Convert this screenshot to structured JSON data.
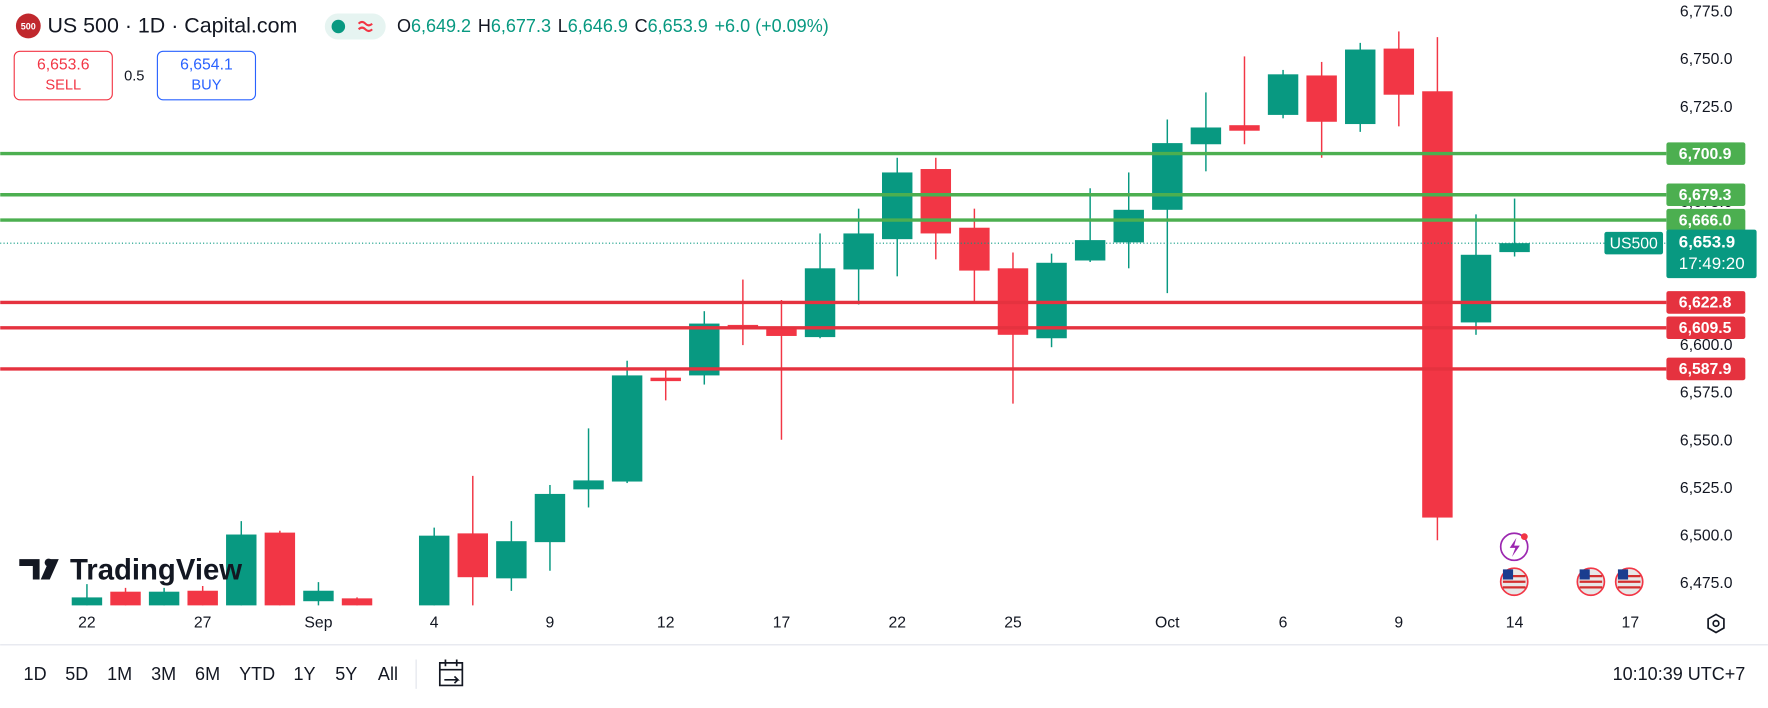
{
  "header": {
    "badge": "500",
    "symbol": "US 500 · 1D · Capital.com",
    "ohlc": [
      {
        "label": "O",
        "value": "6,649.2"
      },
      {
        "label": "H",
        "value": "6,677.3"
      },
      {
        "label": "L",
        "value": "6,646.9"
      },
      {
        "label": "C",
        "value": "6,653.9"
      }
    ],
    "change": "+6.0 (+0.09%)",
    "sell": {
      "price": "6,653.6",
      "label": "SELL"
    },
    "spread": "0.5",
    "buy": {
      "price": "6,654.1",
      "label": "BUY"
    }
  },
  "logo": "TradingView",
  "toolbar": {
    "ranges": [
      "1D",
      "5D",
      "1M",
      "3M",
      "6M",
      "YTD",
      "1Y",
      "5Y",
      "All"
    ],
    "clock": "10:10:39 UTC+7"
  },
  "chart_data": {
    "type": "candlestick",
    "categories": [
      "22",
      null,
      null,
      "27",
      null,
      null,
      "Sep",
      null,
      null,
      "4",
      null,
      null,
      "9",
      null,
      null,
      "12",
      null,
      null,
      "17",
      null,
      null,
      "22",
      null,
      null,
      "25",
      null,
      null,
      null,
      "Oct",
      null,
      null,
      "6",
      null,
      null,
      "9",
      null,
      null,
      "14",
      null,
      null,
      "17"
    ],
    "open": [
      6450,
      6471,
      6450,
      6471.5,
      6450,
      6502,
      6466,
      6467.5,
      null,
      6455,
      6501.6,
      6478,
      6497,
      6524.7,
      6528.8,
      6583.3,
      6584.5,
      6611,
      6609.3,
      6604.6,
      6640.1,
      6656,
      6692.8,
      6662,
      6640.7,
      6604,
      6644.8,
      6654.3,
      6671.4,
      6705.8,
      6715.8,
      6721.2,
      6741.9,
      6716.4,
      6756,
      6733.6,
      6612.3,
      6649.2,
      null,
      null,
      null
    ],
    "high": [
      6475,
      6473,
      6473,
      6474,
      6508,
      6503,
      6476,
      6468,
      null,
      6504.6,
      6531.8,
      6508,
      6527,
      6556.7,
      6592.2,
      6588,
      6618.2,
      6634.8,
      6624.1,
      6659,
      6672,
      6698.7,
      6698.7,
      6672,
      6649,
      6648.4,
      6682.7,
      6691,
      6718.8,
      6733,
      6751.9,
      6744.8,
      6749,
      6759,
      6765,
      6762,
      6669,
      6677.3,
      null,
      null,
      null
    ],
    "low": [
      6440,
      6440,
      6445,
      6450,
      6440,
      6440,
      6462,
      6440,
      null,
      6450,
      6462,
      6471.4,
      6482,
      6515.2,
      6528,
      6571.4,
      6579.7,
      6600.4,
      6550.7,
      6604,
      6621.7,
      6636.5,
      6645.4,
      6622.9,
      6569.7,
      6599.3,
      6644,
      6640.7,
      6627.7,
      6691.6,
      6705.8,
      6719.4,
      6698.7,
      6712.3,
      6715.2,
      6498,
      6605.8,
      6646.9,
      null,
      null,
      null
    ],
    "close": [
      6468,
      6450,
      6471,
      6458,
      6501,
      6450,
      6471.5,
      6450,
      null,
      6500.4,
      6478.6,
      6497.5,
      6522.3,
      6529.4,
      6584.5,
      6581.5,
      6611.7,
      6609.3,
      6605.2,
      6640.7,
      6659,
      6691,
      6659,
      6639.5,
      6605.8,
      6643.6,
      6655.5,
      6671.4,
      6706.4,
      6714.6,
      6712.9,
      6742.5,
      6717.6,
      6755.5,
      6731.8,
      6509.9,
      6647.8,
      6653.9,
      null,
      null,
      null
    ],
    "up_color": "#089981",
    "down_color": "#f23645",
    "ylim": [
      6463.8,
      6781.5
    ],
    "yticks": [
      {
        "value": 6475,
        "label": "6,475.0"
      },
      {
        "value": 6500,
        "label": "6,500.0"
      },
      {
        "value": 6525,
        "label": "6,525.0"
      },
      {
        "value": 6550,
        "label": "6,550.0"
      },
      {
        "value": 6575,
        "label": "6,575.0"
      },
      {
        "value": 6600,
        "label": "6,600.0"
      },
      {
        "value": 6625,
        "label": "6,625.0"
      },
      {
        "value": 6650,
        "label": "6,650.0"
      },
      {
        "value": 6675,
        "label": "6,675.0"
      },
      {
        "value": 6700,
        "label": "6,700.0"
      },
      {
        "value": 6725,
        "label": "6,725.0"
      },
      {
        "value": 6750,
        "label": "6,750.0"
      },
      {
        "value": 6775,
        "label": "6,775.0"
      }
    ],
    "grid": false,
    "levels": [
      {
        "value": 6700.9,
        "label": "6,700.9",
        "color": "#4caf50"
      },
      {
        "value": 6679.3,
        "label": "6,679.3",
        "color": "#4caf50"
      },
      {
        "value": 6666.0,
        "label": "6,666.0",
        "color": "#4caf50"
      },
      {
        "value": 6622.8,
        "label": "6,622.8",
        "color": "#e5323f"
      },
      {
        "value": 6609.5,
        "label": "6,609.5",
        "color": "#e5323f"
      },
      {
        "value": 6587.9,
        "label": "6,587.9",
        "color": "#e5323f"
      }
    ],
    "last_price": {
      "value": 6653.9,
      "label": "6,653.9",
      "symbol": "US500",
      "countdown": "17:49:20"
    }
  }
}
